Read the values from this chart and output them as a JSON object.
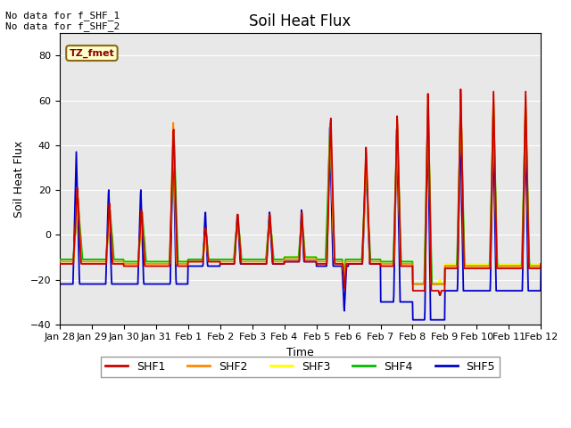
{
  "title": "Soil Heat Flux",
  "xlabel": "Time",
  "ylabel": "Soil Heat Flux",
  "ylim": [
    -40,
    90
  ],
  "yticks": [
    -40,
    -20,
    0,
    20,
    40,
    60,
    80
  ],
  "background_color": "#e8e8e8",
  "text_no_data_1": "No data for f_SHF_1",
  "text_no_data_2": "No data for f_SHF_2",
  "tz_label": "TZ_fmet",
  "legend_entries": [
    "SHF1",
    "SHF2",
    "SHF3",
    "SHF4",
    "SHF5"
  ],
  "legend_colors": [
    "#cc0000",
    "#ff8800",
    "#ffff00",
    "#00bb00",
    "#0000cc"
  ],
  "x_tick_labels": [
    "Jan 28",
    "Jan 29",
    "Jan 30",
    "Jan 31",
    "Feb 1",
    "Feb 2",
    "Feb 3",
    "Feb 4",
    "Feb 5",
    "Feb 6",
    "Feb 7",
    "Feb 8",
    "Feb 9",
    "Feb 10",
    "Feb 11",
    "Feb 12"
  ],
  "num_days": 15,
  "points_per_day": 96
}
